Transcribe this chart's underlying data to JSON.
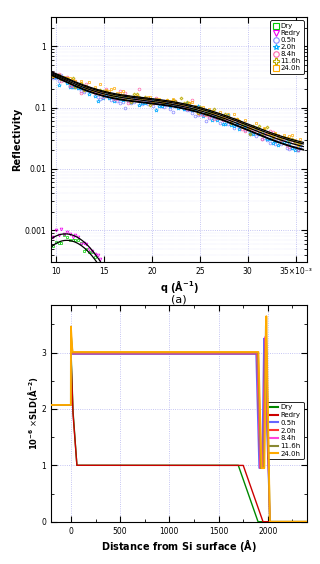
{
  "panel_a": {
    "xlabel": "q (Å⁻¹)",
    "ylabel": "Reflectivity",
    "xlim": [
      0.0095,
      0.0362
    ],
    "ylim": [
      0.0003,
      3.0
    ],
    "series": [
      {
        "label": "Dry",
        "color": "#00cc00",
        "marker": "s"
      },
      {
        "label": "Redry",
        "color": "#ee00ee",
        "marker": "v"
      },
      {
        "label": "0.5h",
        "color": "#8888ff",
        "marker": "o"
      },
      {
        "label": "2.0h",
        "color": "#00aaff",
        "marker": "*"
      },
      {
        "label": "8.4h",
        "color": "#ff66aa",
        "marker": "o"
      },
      {
        "label": "11.6h",
        "color": "#bbaa00",
        "marker": "P"
      },
      {
        "label": "24.0h",
        "color": "#ffaa00",
        "marker": "s"
      }
    ],
    "refl_params": {
      "Dry": {
        "A": 1.0,
        "decay": 155,
        "osc_amp": 0.85,
        "osc_freq": 650,
        "osc_phase": 0.0,
        "scale": 0.0025
      },
      "Redry": {
        "A": 1.0,
        "decay": 150,
        "osc_amp": 0.8,
        "osc_freq": 640,
        "osc_phase": 0.2,
        "scale": 0.003
      },
      "0.5h": {
        "A": 1.0,
        "decay": 100,
        "osc_amp": 0.25,
        "osc_freq": 310,
        "osc_phase": 0.1,
        "scale": 0.85
      },
      "2.0h": {
        "A": 1.0,
        "decay": 100,
        "osc_amp": 0.25,
        "osc_freq": 310,
        "osc_phase": 0.1,
        "scale": 0.87
      },
      "8.4h": {
        "A": 1.0,
        "decay": 98,
        "osc_amp": 0.23,
        "osc_freq": 310,
        "osc_phase": 0.1,
        "scale": 0.89
      },
      "11.6h": {
        "A": 1.0,
        "decay": 96,
        "osc_amp": 0.22,
        "osc_freq": 310,
        "osc_phase": 0.1,
        "scale": 0.91
      },
      "24.0h": {
        "A": 1.0,
        "decay": 95,
        "osc_amp": 0.22,
        "osc_freq": 310,
        "osc_phase": 0.1,
        "scale": 0.93
      }
    },
    "xtick_vals": [
      0.01,
      0.015,
      0.02,
      0.025,
      0.03,
      0.035
    ],
    "xtick_labels": [
      "10",
      "15",
      "20",
      "25",
      "30",
      "35×10⁻³"
    ],
    "ytick_vals": [
      0.001,
      0.01,
      0.1,
      1.0
    ],
    "ytick_labels": [
      "0.001",
      "0.01",
      "0.1",
      "1"
    ]
  },
  "panel_b": {
    "xlabel": "Distance from Si surface (Å)",
    "ylabel": "10⁻⁶ ×SLD(Å⁻²)",
    "xlim": [
      -200,
      2400
    ],
    "ylim": [
      0,
      3.85
    ],
    "series": [
      {
        "label": "Dry",
        "color": "#008800"
      },
      {
        "label": "Redry",
        "color": "#cc0000"
      },
      {
        "label": "0.5h",
        "color": "#6666ff"
      },
      {
        "label": "2.0h",
        "color": "#ff3333"
      },
      {
        "label": "8.4h",
        "color": "#ff44dd"
      },
      {
        "label": "11.6h",
        "color": "#888833"
      },
      {
        "label": "24.0h",
        "color": "#ffaa00"
      }
    ],
    "xtick_vals": [
      0,
      500,
      1000,
      1500,
      2000
    ],
    "xtick_labels": [
      "0",
      "500",
      "1000",
      "1500",
      "2000"
    ],
    "ytick_vals": [
      0,
      1,
      2,
      3
    ],
    "ytick_labels": [
      "0",
      "1",
      "2",
      "3"
    ]
  },
  "background_color": "#ffffff",
  "grid_color": "#aaaaee"
}
